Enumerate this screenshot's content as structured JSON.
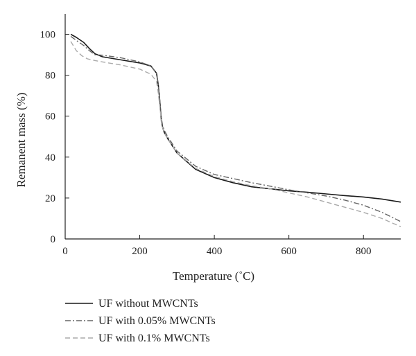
{
  "chart_data": {
    "type": "line",
    "title": "",
    "xlabel": "Temperature (˚C)",
    "ylabel": "Remanent mass (%)",
    "xlim": [
      0,
      900
    ],
    "ylim": [
      0,
      110
    ],
    "xticks": [
      0,
      200,
      400,
      600,
      800
    ],
    "yticks": [
      0,
      20,
      40,
      60,
      80,
      100
    ],
    "grid": false,
    "legend_position": "bottom-left below plot",
    "series": [
      {
        "name": "UF without MWCNTs",
        "color": "#1a1a1a",
        "dash": "solid",
        "x": [
          15,
          30,
          50,
          65,
          80,
          100,
          150,
          200,
          230,
          245,
          250,
          255,
          258,
          262,
          266,
          275,
          300,
          350,
          400,
          450,
          500,
          550,
          600,
          650,
          700,
          750,
          800,
          850,
          900
        ],
        "y": [
          100,
          98.5,
          96,
          93,
          90.5,
          89,
          87.5,
          86,
          84.5,
          81,
          75,
          65,
          58,
          54,
          52,
          49,
          42,
          34,
          30,
          27.5,
          25.5,
          24.5,
          23.5,
          22.8,
          22,
          21.2,
          20.5,
          19.5,
          18
        ]
      },
      {
        "name": "UF with 0.05% MWCNTs",
        "color": "#666666",
        "dash": "dashdot",
        "x": [
          15,
          30,
          50,
          65,
          80,
          100,
          150,
          200,
          230,
          245,
          250,
          255,
          258,
          262,
          266,
          275,
          300,
          350,
          400,
          450,
          500,
          550,
          600,
          650,
          700,
          750,
          800,
          850,
          900
        ],
        "y": [
          99,
          97,
          94.5,
          92,
          90,
          89.8,
          88.5,
          86.5,
          84.5,
          81,
          75,
          66,
          59,
          55,
          53,
          50,
          43,
          35.5,
          31.5,
          29.5,
          27.5,
          25.8,
          24,
          22.5,
          21,
          19,
          16.5,
          13,
          8.5
        ]
      },
      {
        "name": "UF with 0.1% MWCNTs",
        "color": "#aaaaaa",
        "dash": "dashed",
        "x": [
          15,
          30,
          45,
          60,
          80,
          100,
          150,
          200,
          230,
          245,
          250,
          255,
          258,
          262,
          266,
          275,
          300,
          350,
          400,
          450,
          500,
          550,
          600,
          650,
          700,
          750,
          800,
          850,
          900
        ],
        "y": [
          96.5,
          92,
          89.5,
          88,
          87.2,
          86.5,
          85,
          83,
          80.5,
          77,
          71,
          63,
          57,
          54,
          52,
          49,
          42,
          34.5,
          30.5,
          28,
          26,
          24.5,
          22.5,
          20.5,
          18,
          15.5,
          13,
          10,
          6
        ]
      }
    ]
  }
}
